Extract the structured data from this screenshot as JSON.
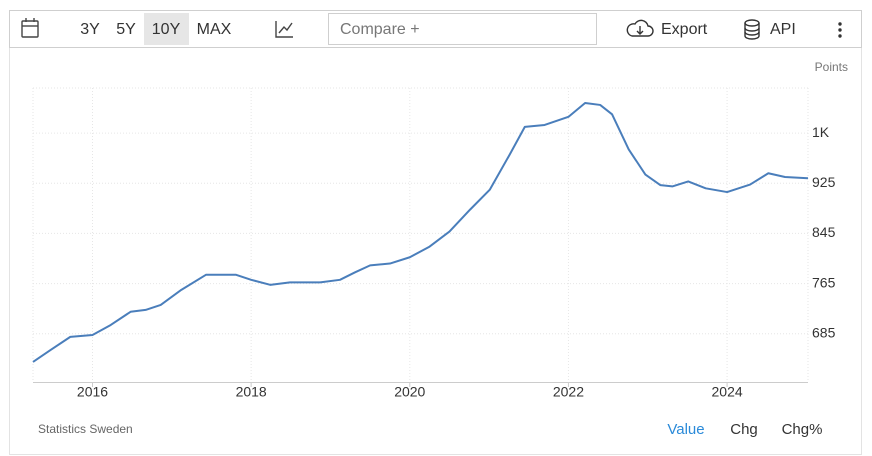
{
  "toolbar": {
    "ranges": [
      "3Y",
      "5Y",
      "10Y",
      "MAX"
    ],
    "active_range": 2,
    "compare_placeholder": "Compare +",
    "export": "Export",
    "api": "API"
  },
  "footer": {
    "source": "Statistics Sweden",
    "tabs": [
      "Value",
      "Chg",
      "Chg%"
    ],
    "active_tab": 0
  },
  "chart_data": {
    "type": "line",
    "unit": "Points",
    "x": [
      2015.25,
      2015.47,
      2015.72,
      2016.0,
      2016.23,
      2016.48,
      2016.67,
      2016.86,
      2017.12,
      2017.43,
      2017.81,
      2018.0,
      2018.24,
      2018.49,
      2018.87,
      2019.12,
      2019.31,
      2019.5,
      2019.75,
      2020.0,
      2020.25,
      2020.5,
      2020.76,
      2021.01,
      2021.26,
      2021.45,
      2021.7,
      2022.0,
      2022.21,
      2022.4,
      2022.55,
      2022.76,
      2022.97,
      2023.16,
      2023.31,
      2023.51,
      2023.73,
      2024.0,
      2024.29,
      2024.52,
      2024.73,
      2025.02
    ],
    "series": [
      {
        "name": "Value",
        "color": "#4a7ebb",
        "values": [
          640,
          659,
          680,
          683,
          699,
          720,
          723,
          731,
          755,
          779,
          779,
          771,
          763,
          767,
          767,
          771,
          783,
          794,
          797,
          807,
          824,
          848,
          883,
          915,
          971,
          1015,
          1018,
          1031,
          1053,
          1050,
          1035,
          979,
          939,
          922,
          920,
          928,
          917,
          911,
          923,
          941,
          935,
          933
        ]
      }
    ],
    "xlim": [
      2015.25,
      2025.02
    ],
    "xticks": [
      2016,
      2018,
      2020,
      2022,
      2024
    ],
    "ylim": [
      608,
      1077
    ],
    "yticks": [
      685,
      765,
      845,
      925,
      {
        "value": 1005,
        "label": "1K"
      }
    ],
    "grid": true
  }
}
